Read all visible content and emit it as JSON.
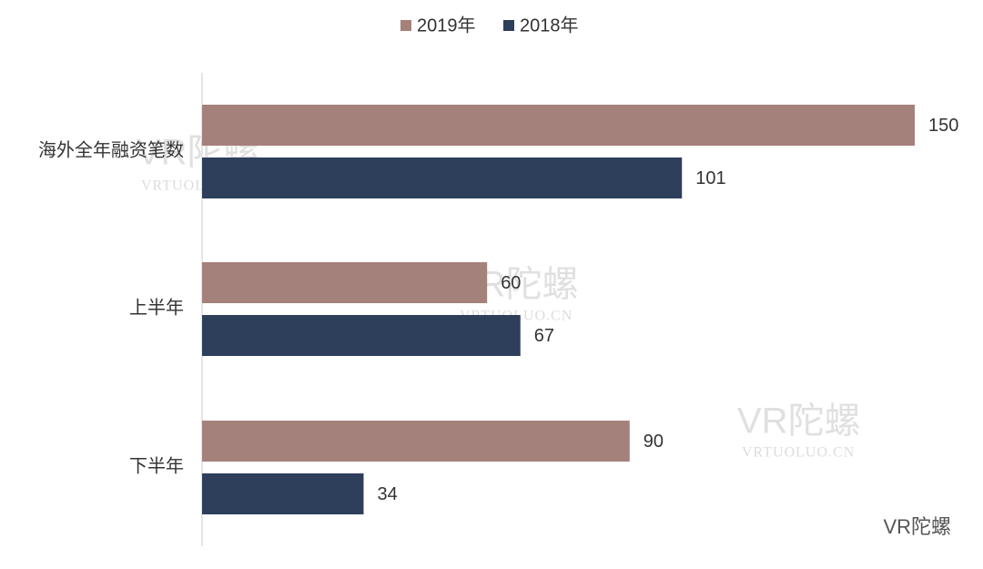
{
  "chart_data": {
    "type": "bar",
    "orientation": "horizontal",
    "categories": [
      "海外全年融资笔数",
      "上半年",
      "下半年"
    ],
    "series": [
      {
        "name": "2019年",
        "color": "#a5817b",
        "values": [
          150,
          60,
          90
        ]
      },
      {
        "name": "2018年",
        "color": "#2e3f5c",
        "values": [
          101,
          67,
          34
        ]
      }
    ],
    "legend": "top",
    "watermark": "VR陀螺",
    "watermark_url": "VRTUOLUO.CN",
    "source": "VR陀螺"
  }
}
